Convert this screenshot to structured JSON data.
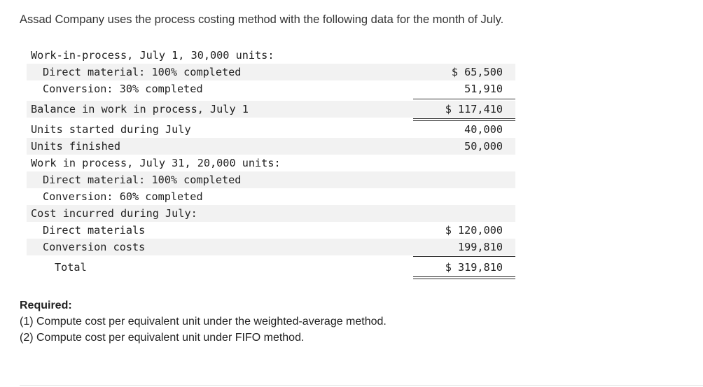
{
  "intro": "Assad Company uses the process costing method with the following data for the month of July.",
  "rows": [
    {
      "label": "Work-in-process, July 1, 30,000 units:",
      "value": ""
    },
    {
      "label": "Direct material: 100% completed",
      "value": "$ 65,500"
    },
    {
      "label": "Conversion: 30% completed",
      "value": "51,910"
    },
    {
      "label": "Balance in work in process, July 1",
      "value": "$ 117,410"
    },
    {
      "label": "Units started during July",
      "value": "40,000"
    },
    {
      "label": "Units finished",
      "value": "50,000"
    },
    {
      "label": "Work in process, July 31, 20,000 units:",
      "value": ""
    },
    {
      "label": "Direct material: 100% completed",
      "value": ""
    },
    {
      "label": "Conversion: 60% completed",
      "value": ""
    },
    {
      "label": "Cost incurred during July:",
      "value": ""
    },
    {
      "label": "Direct materials",
      "value": "$ 120,000"
    },
    {
      "label": "Conversion costs",
      "value": "199,810"
    },
    {
      "label": "Total",
      "value": "$ 319,810"
    }
  ],
  "required": {
    "heading": "Required:",
    "items": [
      "(1) Compute cost per equivalent unit under the weighted-average method.",
      "(2) Compute cost per equivalent unit under FIFO method."
    ]
  }
}
